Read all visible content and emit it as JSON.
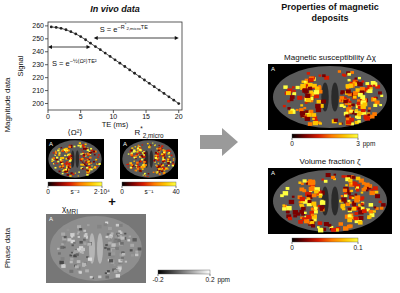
{
  "panels": {
    "left_title": "In vivo data",
    "right_title": "Properties of magnetic deposits"
  },
  "row_labels": {
    "magnitude": "Magnitude data",
    "phase": "Phase data"
  },
  "chart_data": {
    "type": "line",
    "x_label": "TE (ms)",
    "y_label": "Signal",
    "x": [
      0.5,
      1.25,
      2,
      2.75,
      3.5,
      4.25,
      5,
      5.75,
      6.5,
      7.25,
      8,
      8.75,
      9.5,
      10.25,
      11,
      11.75,
      12.5,
      13.25,
      14,
      14.75,
      15.5,
      16.25,
      17,
      17.75,
      18.5,
      19.25,
      20
    ],
    "values": [
      259.2,
      258.8,
      258.1,
      257.0,
      255.5,
      253.8,
      251.7,
      249.3,
      246.6,
      244.0,
      241.6,
      239.0,
      236.4,
      233.8,
      231.2,
      228.6,
      226.0,
      223.4,
      220.8,
      218.2,
      215.6,
      213.0,
      210.4,
      207.8,
      205.2,
      202.6,
      200.0
    ],
    "color": "#222222",
    "marker": "circle",
    "xlim": [
      0,
      20.5
    ],
    "ylim": [
      195,
      263
    ],
    "xticks": [
      0,
      5,
      10,
      15,
      20
    ],
    "yticks": [
      200,
      210,
      220,
      230,
      240,
      250,
      260
    ],
    "annotations": [
      {
        "base": "S = e",
        "exponent": "−½⟨Ω²⟩TE²",
        "range": [
          0,
          6.5
        ]
      },
      {
        "base": "S = e",
        "exponent": [
          "−R",
          {
            "sup": "*"
          },
          {
            "sub": "2,micro"
          },
          "TE"
        ],
        "range": [
          7,
          20
        ]
      }
    ]
  },
  "magnitude_maps": [
    {
      "label": "⟨Ω²⟩",
      "orientation": "A",
      "colorbar": {
        "range": [
          0,
          20000
        ],
        "ticks": [
          0,
          {
            "value": 20000,
            "label": "2·10⁴"
          }
        ],
        "unit": "s⁻²"
      }
    },
    {
      "label": [
        "R",
        {
          "sup": "*"
        },
        {
          "sub": "2,micro"
        }
      ],
      "orientation": "A",
      "colorbar": {
        "range": [
          0,
          40
        ],
        "ticks": [
          0,
          40
        ],
        "unit": "s⁻¹"
      }
    }
  ],
  "operator": "+",
  "phase_map": {
    "label": [
      "χ",
      {
        "sub": "MRI"
      }
    ],
    "orientation": "A",
    "colorbar": {
      "range": [
        -0.2,
        0.2
      ],
      "ticks": [
        -0.2,
        0.2
      ],
      "unit": "ppm"
    }
  },
  "output_maps": [
    {
      "title": "Magnetic susceptibility Δχ",
      "orientation": "A",
      "colorbar": {
        "range": [
          0,
          3
        ],
        "ticks": [
          0,
          3
        ],
        "unit": "ppm"
      }
    },
    {
      "title": "Volume fraction ζ",
      "orientation": "A",
      "colorbar": {
        "range": [
          0,
          0.1
        ],
        "ticks": [
          0,
          0.1
        ]
      }
    }
  ]
}
